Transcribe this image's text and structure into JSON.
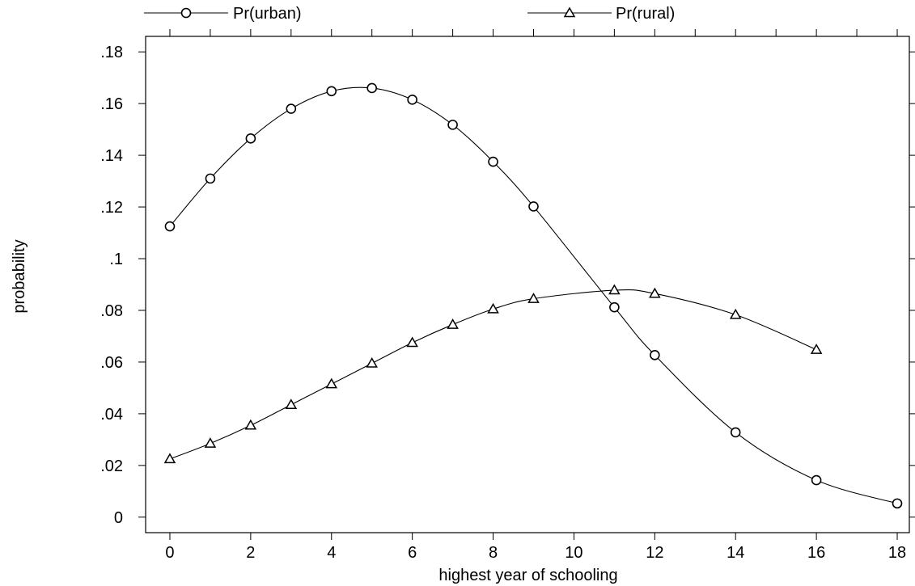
{
  "chart_data": {
    "type": "line",
    "title": "",
    "xlabel": "highest year of schooling",
    "ylabel": "probability",
    "xlim": [
      -0.6,
      18.3
    ],
    "ylim": [
      -0.006,
      0.186
    ],
    "x_ticks": [
      0,
      2,
      4,
      6,
      8,
      10,
      12,
      14,
      16,
      18
    ],
    "x_tick_labels": [
      "0",
      "2",
      "4",
      "6",
      "8",
      "10",
      "12",
      "14",
      "16",
      "18"
    ],
    "top_ticks": [
      0,
      1,
      2,
      3,
      4,
      5,
      6,
      7,
      8,
      9,
      10,
      11,
      12,
      13,
      14,
      15,
      16,
      17,
      18
    ],
    "y_ticks": [
      0,
      0.02,
      0.04,
      0.06,
      0.08,
      0.1,
      0.12,
      0.14,
      0.16,
      0.18
    ],
    "y_tick_labels": [
      "0",
      ".02",
      ".04",
      ".06",
      ".08",
      ".1",
      ".12",
      ".14",
      ".16",
      ".18"
    ],
    "grid": false,
    "legend": {
      "placement": "top"
    },
    "series": [
      {
        "name": "Pr(urban)",
        "marker": "circle",
        "x": [
          0,
          1,
          2,
          3,
          4,
          5,
          6,
          7,
          8,
          9,
          11,
          12,
          14,
          16,
          18
        ],
        "values": [
          0.1125,
          0.131,
          0.1465,
          0.158,
          0.1648,
          0.166,
          0.1615,
          0.1518,
          0.1375,
          0.1202,
          0.0812,
          0.0627,
          0.0328,
          0.0143,
          0.0053
        ]
      },
      {
        "name": "Pr(rural)",
        "marker": "triangle",
        "x": [
          0,
          1,
          2,
          3,
          4,
          5,
          6,
          7,
          8,
          9,
          11,
          12,
          14,
          16
        ],
        "values": [
          0.0225,
          0.0285,
          0.0355,
          0.0435,
          0.0515,
          0.0595,
          0.0675,
          0.0745,
          0.0805,
          0.0845,
          0.0878,
          0.0865,
          0.0783,
          0.0648
        ]
      }
    ]
  }
}
